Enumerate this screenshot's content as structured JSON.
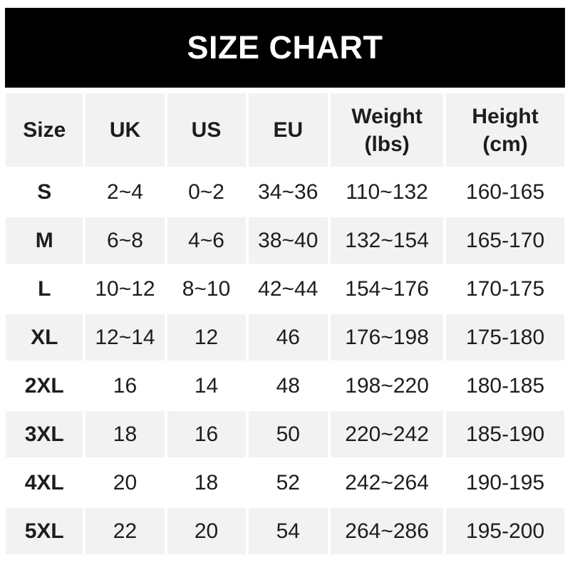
{
  "banner": {
    "title": "SIZE CHART"
  },
  "display": {
    "columns": [
      "Size",
      "UK",
      "US",
      "EU",
      "Weight\n(lbs)",
      "Height\n(cm)"
    ]
  },
  "chart_data": {
    "type": "table",
    "title": "SIZE CHART",
    "columns": [
      "Size",
      "UK",
      "US",
      "EU",
      "Weight (lbs)",
      "Height (cm)"
    ],
    "rows": [
      [
        "S",
        "2~4",
        "0~2",
        "34~36",
        "110~132",
        "160-165"
      ],
      [
        "M",
        "6~8",
        "4~6",
        "38~40",
        "132~154",
        "165-170"
      ],
      [
        "L",
        "10~12",
        "8~10",
        "42~44",
        "154~176",
        "170-175"
      ],
      [
        "XL",
        "12~14",
        "12",
        "46",
        "176~198",
        "175-180"
      ],
      [
        "2XL",
        "16",
        "14",
        "48",
        "198~220",
        "180-185"
      ],
      [
        "3XL",
        "18",
        "16",
        "50",
        "220~242",
        "185-190"
      ],
      [
        "4XL",
        "20",
        "18",
        "52",
        "242~264",
        "190-195"
      ],
      [
        "5XL",
        "22",
        "20",
        "54",
        "264~286",
        "195-200"
      ]
    ]
  },
  "colors": {
    "banner_bg": "#000000",
    "banner_text": "#ffffff",
    "row_alt_bg": "#f2f2f2",
    "row_bg": "#ffffff",
    "text": "#1d1d1f"
  }
}
